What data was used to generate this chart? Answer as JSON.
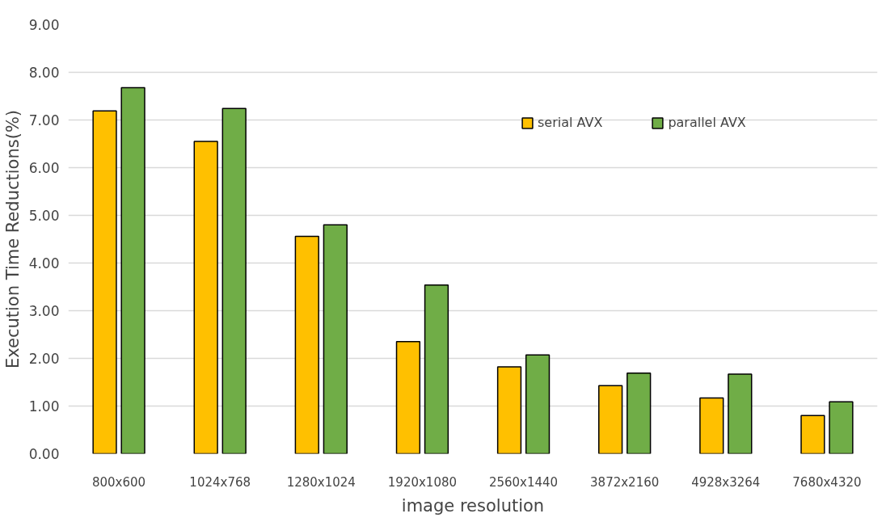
{
  "chart_data": {
    "type": "bar",
    "xlabel": "image resolution",
    "ylabel": "Execution Time Reductions(%)",
    "categories": [
      "800x600",
      "1024x768",
      "1280x1024",
      "1920x1080",
      "2560x1440",
      "3872x2160",
      "4928x3264",
      "7680x4320"
    ],
    "series": [
      {
        "name": "serial AVX",
        "color": "#ffc000",
        "values": [
          7.19,
          6.55,
          4.56,
          2.35,
          1.82,
          1.43,
          1.17,
          0.8
        ]
      },
      {
        "name": "parallel AVX",
        "color": "#70ad47",
        "values": [
          7.68,
          7.24,
          4.8,
          3.54,
          2.07,
          1.69,
          1.67,
          1.09
        ]
      }
    ],
    "ylim": [
      0,
      9
    ],
    "yticks": [
      {
        "value": 0,
        "label": "0.00"
      },
      {
        "value": 1,
        "label": "1.00"
      },
      {
        "value": 2,
        "label": "2.00"
      },
      {
        "value": 3,
        "label": "3.00"
      },
      {
        "value": 4,
        "label": "4.00"
      },
      {
        "value": 5,
        "label": "5.00"
      },
      {
        "value": 6,
        "label": "6.00"
      },
      {
        "value": 7,
        "label": "7.00"
      },
      {
        "value": 8,
        "label": "8.00"
      },
      {
        "value": 9,
        "label": "9.00"
      }
    ],
    "grid": "y",
    "legend": "top right"
  }
}
